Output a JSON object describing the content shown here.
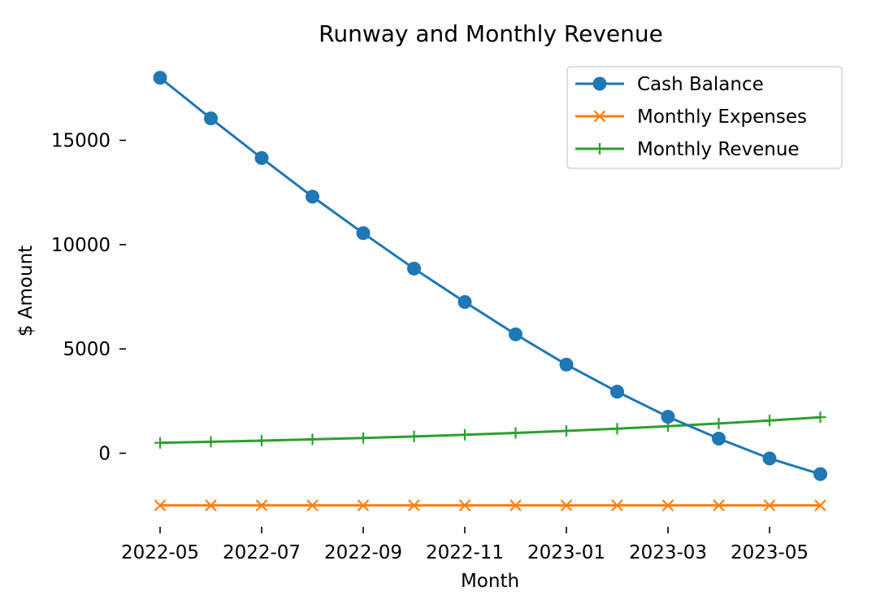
{
  "chart_data": {
    "type": "line",
    "title": "Runway and Monthly Revenue",
    "xlabel": "Month",
    "ylabel": "$ Amount",
    "ylim": [
      -3500,
      18900
    ],
    "yticks": [
      0,
      5000,
      10000,
      15000
    ],
    "x_ticklabels": [
      "2022-05",
      "2022-07",
      "2022-09",
      "2022-11",
      "2023-01",
      "2023-03",
      "2023-05"
    ],
    "x_tick_month_index": [
      0,
      2,
      4,
      6,
      8,
      10,
      12
    ],
    "x": [
      "2022-05",
      "2022-06",
      "2022-07",
      "2022-08",
      "2022-09",
      "2022-10",
      "2022-11",
      "2022-12",
      "2023-01",
      "2023-02",
      "2023-03",
      "2023-04",
      "2023-05",
      "2023-06"
    ],
    "legend_position": "top-right",
    "grid": false,
    "series": [
      {
        "name": "Cash Balance",
        "color": "#1f77b4",
        "marker": "circle",
        "values": [
          18000,
          16050,
          14150,
          12300,
          10550,
          8850,
          7250,
          5700,
          4250,
          2950,
          1750,
          700,
          -250,
          -1000
        ]
      },
      {
        "name": "Monthly Expenses",
        "color": "#ff7f0e",
        "marker": "x",
        "values": [
          -2500,
          -2500,
          -2500,
          -2500,
          -2500,
          -2500,
          -2500,
          -2500,
          -2500,
          -2500,
          -2500,
          -2500,
          -2500,
          -2500
        ]
      },
      {
        "name": "Monthly Revenue",
        "color": "#2ca02c",
        "marker": "plus",
        "values": [
          500,
          550,
          605,
          666,
          732,
          805,
          886,
          974,
          1072,
          1179,
          1297,
          1427,
          1569,
          1726
        ]
      }
    ]
  }
}
